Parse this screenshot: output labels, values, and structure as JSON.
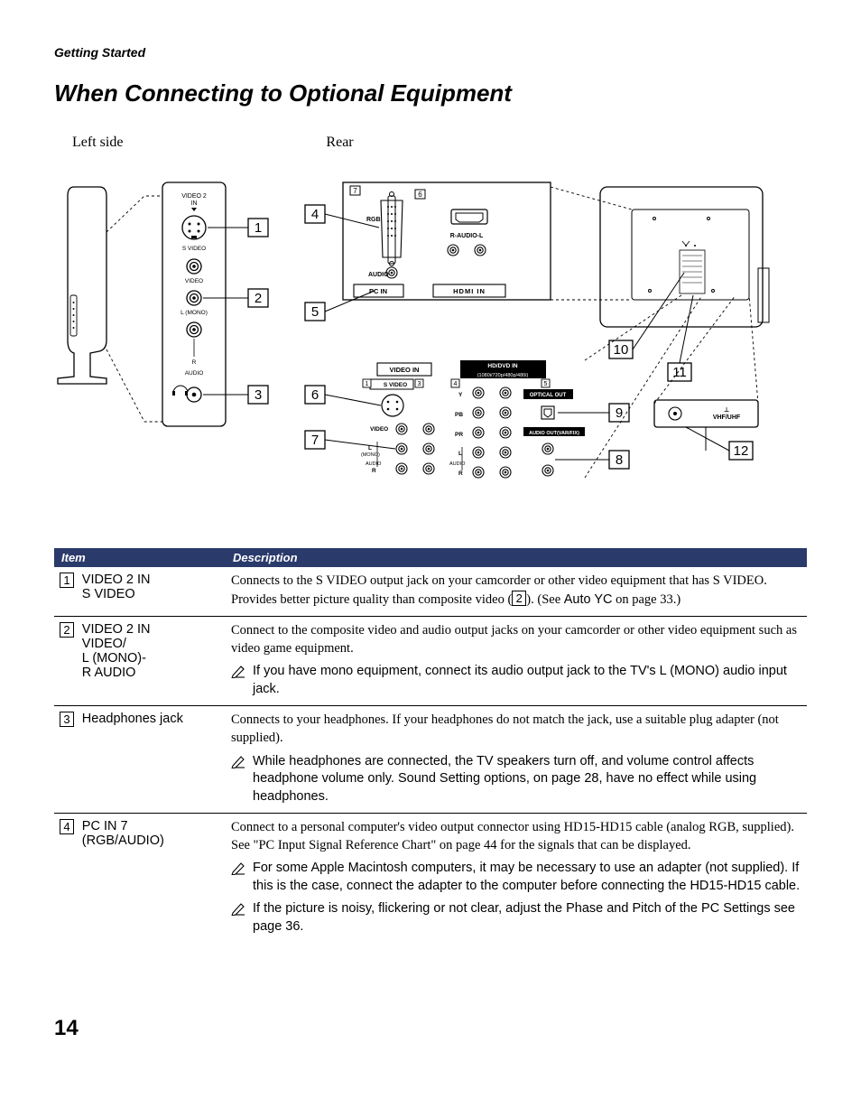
{
  "section_label": "Getting Started",
  "page_title": "When Connecting to Optional Equipment",
  "diagram": {
    "left_label": "Left side",
    "rear_label": "Rear",
    "side_panel_text": [
      "VIDEO 2",
      "IN",
      "S VIDEO",
      "VIDEO",
      "L (MONO)",
      "R",
      "AUDIO"
    ],
    "rear_left_text": [
      "RGB",
      "R-AUDIO-L",
      "AUDIO",
      "PC IN",
      "IN"
    ],
    "rear_lower_text": [
      "VIDEO IN",
      "HD/DVD IN",
      "(1080i/720p/480p/480i)",
      "S VIDEO",
      "Y",
      "PB",
      "PR",
      "OPTICAL OUT",
      "AUDIO OUT(VAR/FIX)",
      "VIDEO",
      "L",
      "(MONO)",
      "R",
      "AUDIO",
      "L",
      "R",
      "1",
      "3",
      "4",
      "5"
    ],
    "antenna_text": "VHF/UHF",
    "callouts": [
      "1",
      "2",
      "3",
      "4",
      "5",
      "6",
      "7",
      "8",
      "9",
      "10",
      "11",
      "12"
    ]
  },
  "table": {
    "headers": {
      "item": "Item",
      "description": "Description"
    },
    "rows": [
      {
        "num": "1",
        "label": "VIDEO 2 IN\nS VIDEO",
        "desc_main_parts": {
          "p1": "Connects to the S VIDEO output jack on your camcorder or other video equipment that has S VIDEO. Provides better picture quality than composite video (",
          "ref": "2",
          "p2": "). (See ",
          "sans": "Auto YC",
          "p3": " on page 33.)"
        }
      },
      {
        "num": "2",
        "label": "VIDEO 2 IN\nVIDEO/\nL (MONO)-\nR AUDIO",
        "desc_main": "Connect to the composite video and audio output jacks on your camcorder or other video equipment such as video game equipment.",
        "notes": [
          "If you have mono equipment, connect its audio output jack to the TV's L (MONO) audio input jack."
        ]
      },
      {
        "num": "3",
        "label": "Headphones jack",
        "desc_main": "Connects to your headphones. If your headphones do not match the jack, use a suitable plug adapter (not supplied).",
        "notes": [
          "While headphones are connected, the TV speakers turn off, and volume control affects headphone volume only. Sound Setting options, on page 28, have no effect while using headphones."
        ]
      },
      {
        "num": "4",
        "label": "PC IN 7\n(RGB/AUDIO)",
        "desc_main": "Connect to a personal computer's video output connector using HD15-HD15 cable (analog RGB, supplied).\nSee \"PC Input Signal Reference Chart\" on page 44 for the signals that can be displayed.",
        "notes": [
          "For some Apple Macintosh computers, it may be necessary to use an adapter (not supplied). If this is the case, connect the adapter to the computer before connecting the HD15-HD15 cable.",
          "If the picture is noisy, flickering or not clear, adjust the Phase and Pitch of the PC Settings see page 36."
        ]
      }
    ]
  },
  "page_number": "14",
  "colors": {
    "header_bg": "#2a3a6a",
    "line": "#000000"
  }
}
